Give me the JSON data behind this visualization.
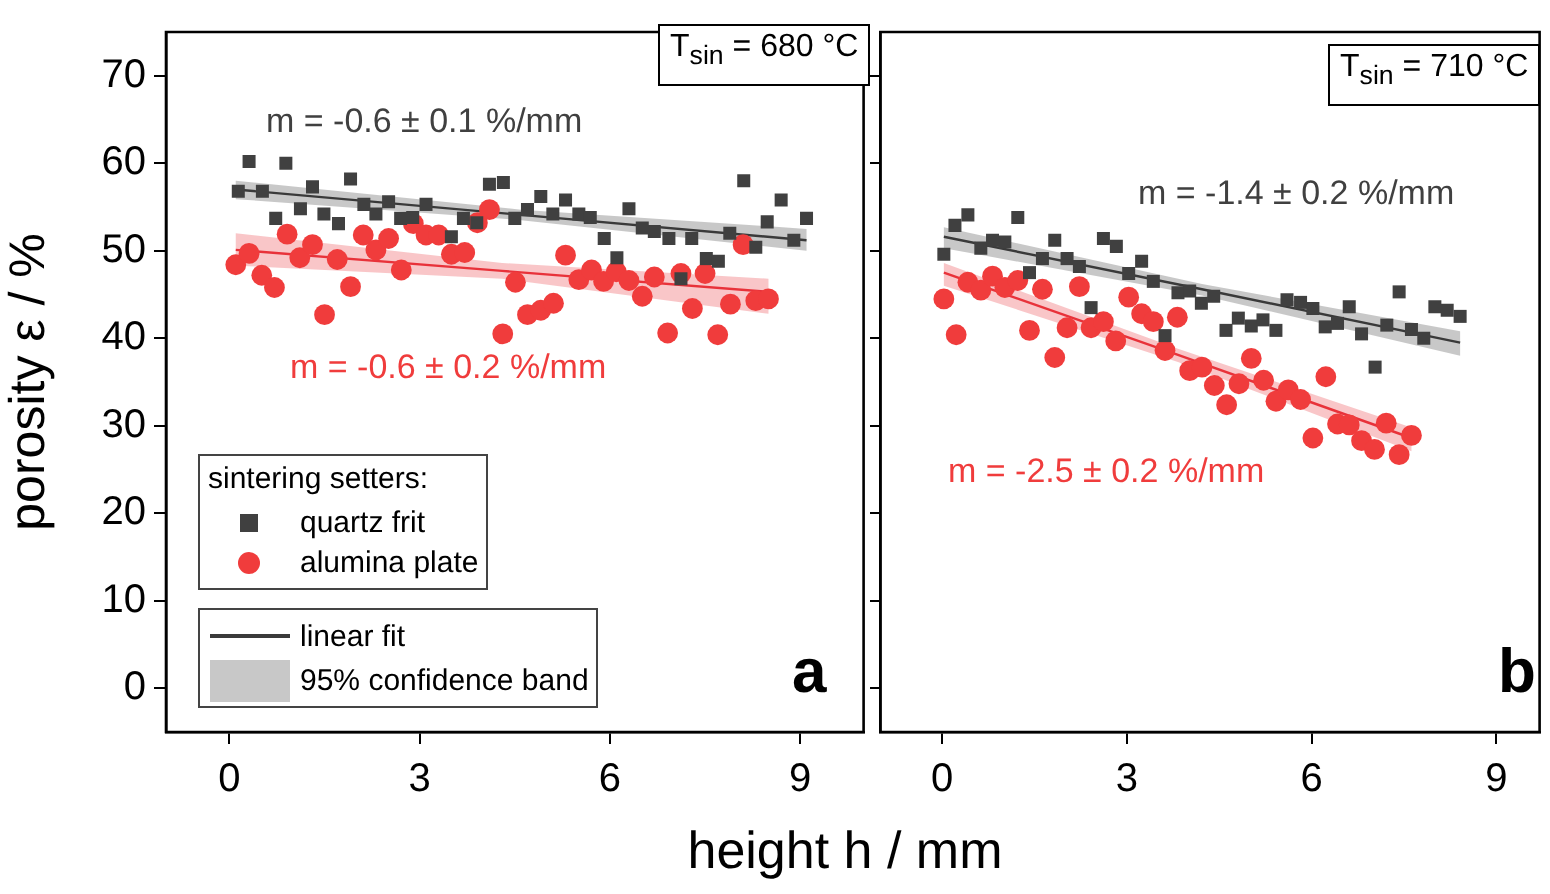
{
  "chart_data": [
    {
      "type": "scatter",
      "ylabel": "porosity ε / %",
      "xlabel": "height h / mm",
      "legend": "bottom left",
      "legend_title": "sintering setters:",
      "grid": false,
      "xlim": [
        -1,
        10
      ],
      "xticks": [
        0,
        3,
        6,
        9
      ],
      "ylim": [
        -5,
        75
      ],
      "yticks": [
        0,
        10,
        20,
        30,
        40,
        50,
        60,
        70
      ],
      "annotations": [
        "T$_{sin}$ = 680 °C",
        "m = -0.6 ± 0.1 %/mm",
        "m = -0.6 ± 0.2 %/mm",
        "a",
        "linear fit",
        "95% confidence band"
      ],
      "series": [
        {
          "name": "quartz frit",
          "type": "scatter",
          "marker": "square",
          "color": "#404040",
          "x": [
            0.14,
            0.31,
            0.52,
            0.73,
            0.89,
            1.12,
            1.31,
            1.49,
            1.72,
            1.91,
            2.12,
            2.31,
            2.51,
            2.7,
            2.89,
            3.1,
            3.5,
            3.69,
            3.9,
            4.1,
            4.32,
            4.5,
            4.7,
            4.91,
            5.1,
            5.3,
            5.51,
            5.69,
            5.91,
            6.11,
            6.3,
            6.51,
            6.7,
            6.93,
            7.12,
            7.29,
            7.52,
            7.71,
            7.89,
            8.11,
            8.3,
            8.48,
            8.7,
            8.9,
            9.1
          ],
          "values": [
            56.8,
            60.2,
            56.8,
            53.7,
            60.0,
            54.8,
            57.3,
            54.2,
            53.1,
            58.2,
            55.3,
            54.2,
            55.6,
            53.7,
            53.8,
            55.3,
            51.6,
            53.7,
            53.2,
            57.6,
            57.8,
            53.7,
            54.7,
            56.2,
            54.2,
            55.8,
            54.2,
            53.8,
            51.4,
            49.2,
            54.8,
            52.6,
            52.2,
            51.4,
            46.8,
            51.4,
            49.1,
            48.8,
            52.0,
            58.0,
            50.4,
            53.3,
            55.8,
            51.2,
            53.7
          ]
        },
        {
          "name": "alumina plate",
          "type": "scatter",
          "marker": "circle",
          "color": "#f03c3c",
          "x": [
            0.1,
            0.31,
            0.51,
            0.71,
            0.91,
            1.11,
            1.31,
            1.5,
            1.7,
            1.91,
            2.11,
            2.31,
            2.51,
            2.71,
            2.9,
            3.1,
            3.3,
            3.5,
            3.71,
            3.91,
            4.1,
            4.31,
            4.51,
            4.7,
            4.91,
            5.11,
            5.3,
            5.51,
            5.71,
            5.9,
            6.1,
            6.3,
            6.51,
            6.7,
            6.91,
            7.12,
            7.3,
            7.5,
            7.7,
            7.9,
            8.1,
            8.3,
            8.5
          ],
          "values": [
            48.4,
            49.7,
            47.2,
            45.8,
            51.9,
            49.2,
            50.7,
            42.7,
            49.0,
            45.9,
            51.8,
            50.1,
            51.4,
            47.8,
            53.1,
            51.8,
            51.8,
            49.6,
            49.8,
            53.2,
            54.7,
            40.5,
            46.4,
            42.7,
            43.2,
            44.0,
            49.5,
            46.7,
            47.8,
            46.5,
            47.6,
            46.6,
            44.8,
            47.0,
            40.6,
            47.4,
            43.4,
            47.4,
            40.4,
            43.9,
            50.7,
            44.3,
            44.5
          ]
        },
        {
          "type": "line",
          "color": "#3a3a3a",
          "x": [
            0.1,
            4.6,
            9.1
          ],
          "values": [
            57.0,
            54.1,
            51.2
          ],
          "lower": [
            55.9,
            53.5,
            50.0
          ],
          "upper": [
            58.0,
            54.7,
            52.5
          ]
        },
        {
          "type": "line",
          "color": "#e8323a",
          "x": [
            0.1,
            4.3,
            8.5
          ],
          "values": [
            50.1,
            47.7,
            45.3
          ],
          "lower": [
            48.3,
            46.8,
            42.8
          ],
          "upper": [
            52.0,
            48.6,
            46.8
          ]
        }
      ]
    },
    {
      "type": "scatter",
      "grid": false,
      "tick_labels": "x",
      "xlim": [
        -1,
        9.7
      ],
      "xticks": [
        0,
        3,
        6,
        9
      ],
      "ylim": [
        -5,
        75
      ],
      "yticks": [
        0,
        10,
        20,
        30,
        40,
        50,
        60,
        70
      ],
      "annotations": [
        "T$_{sin}$ = 710 °C",
        "m = -1.4 ± 0.2 %/mm",
        "m = -2.5 ± 0.2 %/mm",
        "b"
      ],
      "series": [
        {
          "type": "scatter",
          "marker": "square",
          "color": "#404040",
          "x": [
            0.03,
            0.21,
            0.42,
            0.63,
            0.82,
            1.02,
            1.23,
            1.42,
            1.63,
            1.83,
            2.03,
            2.23,
            2.42,
            2.62,
            2.83,
            3.03,
            3.24,
            3.43,
            3.62,
            3.83,
            4.02,
            4.21,
            4.41,
            4.61,
            4.81,
            5.02,
            5.21,
            5.42,
            5.6,
            5.82,
            6.02,
            6.22,
            6.42,
            6.61,
            6.81,
            7.03,
            7.22,
            7.42,
            7.62,
            7.82,
            8.0,
            8.2,
            8.41
          ],
          "values": [
            49.6,
            52.9,
            54.1,
            50.3,
            51.2,
            51.0,
            53.8,
            47.5,
            49.1,
            51.2,
            49.1,
            48.2,
            43.5,
            51.4,
            50.5,
            47.4,
            48.8,
            46.5,
            40.3,
            45.2,
            45.4,
            44.0,
            44.8,
            40.9,
            42.3,
            41.4,
            42.1,
            40.9,
            44.4,
            44.1,
            43.4,
            41.3,
            41.7,
            43.6,
            40.5,
            36.7,
            41.5,
            45.3,
            41.0,
            40.0,
            43.6,
            43.2,
            42.5
          ]
        },
        {
          "type": "scatter",
          "marker": "circle",
          "color": "#f03c3c",
          "x": [
            0.03,
            0.23,
            0.42,
            0.63,
            0.82,
            1.02,
            1.23,
            1.42,
            1.63,
            1.83,
            2.03,
            2.23,
            2.42,
            2.62,
            2.82,
            3.03,
            3.24,
            3.43,
            3.62,
            3.82,
            4.02,
            4.22,
            4.42,
            4.62,
            4.82,
            5.02,
            5.22,
            5.42,
            5.62,
            5.82,
            6.02,
            6.23,
            6.42,
            6.61,
            6.81,
            7.02,
            7.21,
            7.42,
            7.62
          ],
          "values": [
            44.5,
            40.4,
            46.4,
            45.5,
            47.1,
            45.8,
            46.6,
            40.9,
            45.6,
            37.8,
            41.2,
            45.9,
            41.2,
            41.9,
            39.7,
            44.7,
            42.8,
            41.9,
            38.6,
            42.4,
            36.3,
            36.7,
            34.6,
            32.4,
            34.8,
            37.7,
            35.2,
            32.8,
            34.1,
            33.0,
            28.6,
            35.6,
            30.2,
            30.1,
            28.3,
            27.3,
            30.3,
            26.7,
            28.9
          ]
        },
        {
          "type": "line",
          "color": "#3a3a3a",
          "x": [
            0.03,
            4.22,
            8.41
          ],
          "values": [
            51.6,
            45.6,
            39.5
          ],
          "lower": [
            50.3,
            44.9,
            38.0
          ],
          "upper": [
            52.7,
            46.2,
            40.8
          ]
        },
        {
          "type": "line",
          "color": "#e8323a",
          "x": [
            0.03,
            3.83,
            7.62
          ],
          "values": [
            47.5,
            38.1,
            28.6
          ],
          "lower": [
            46.0,
            37.3,
            27.1
          ],
          "upper": [
            48.6,
            38.8,
            29.8
          ]
        }
      ]
    }
  ]
}
